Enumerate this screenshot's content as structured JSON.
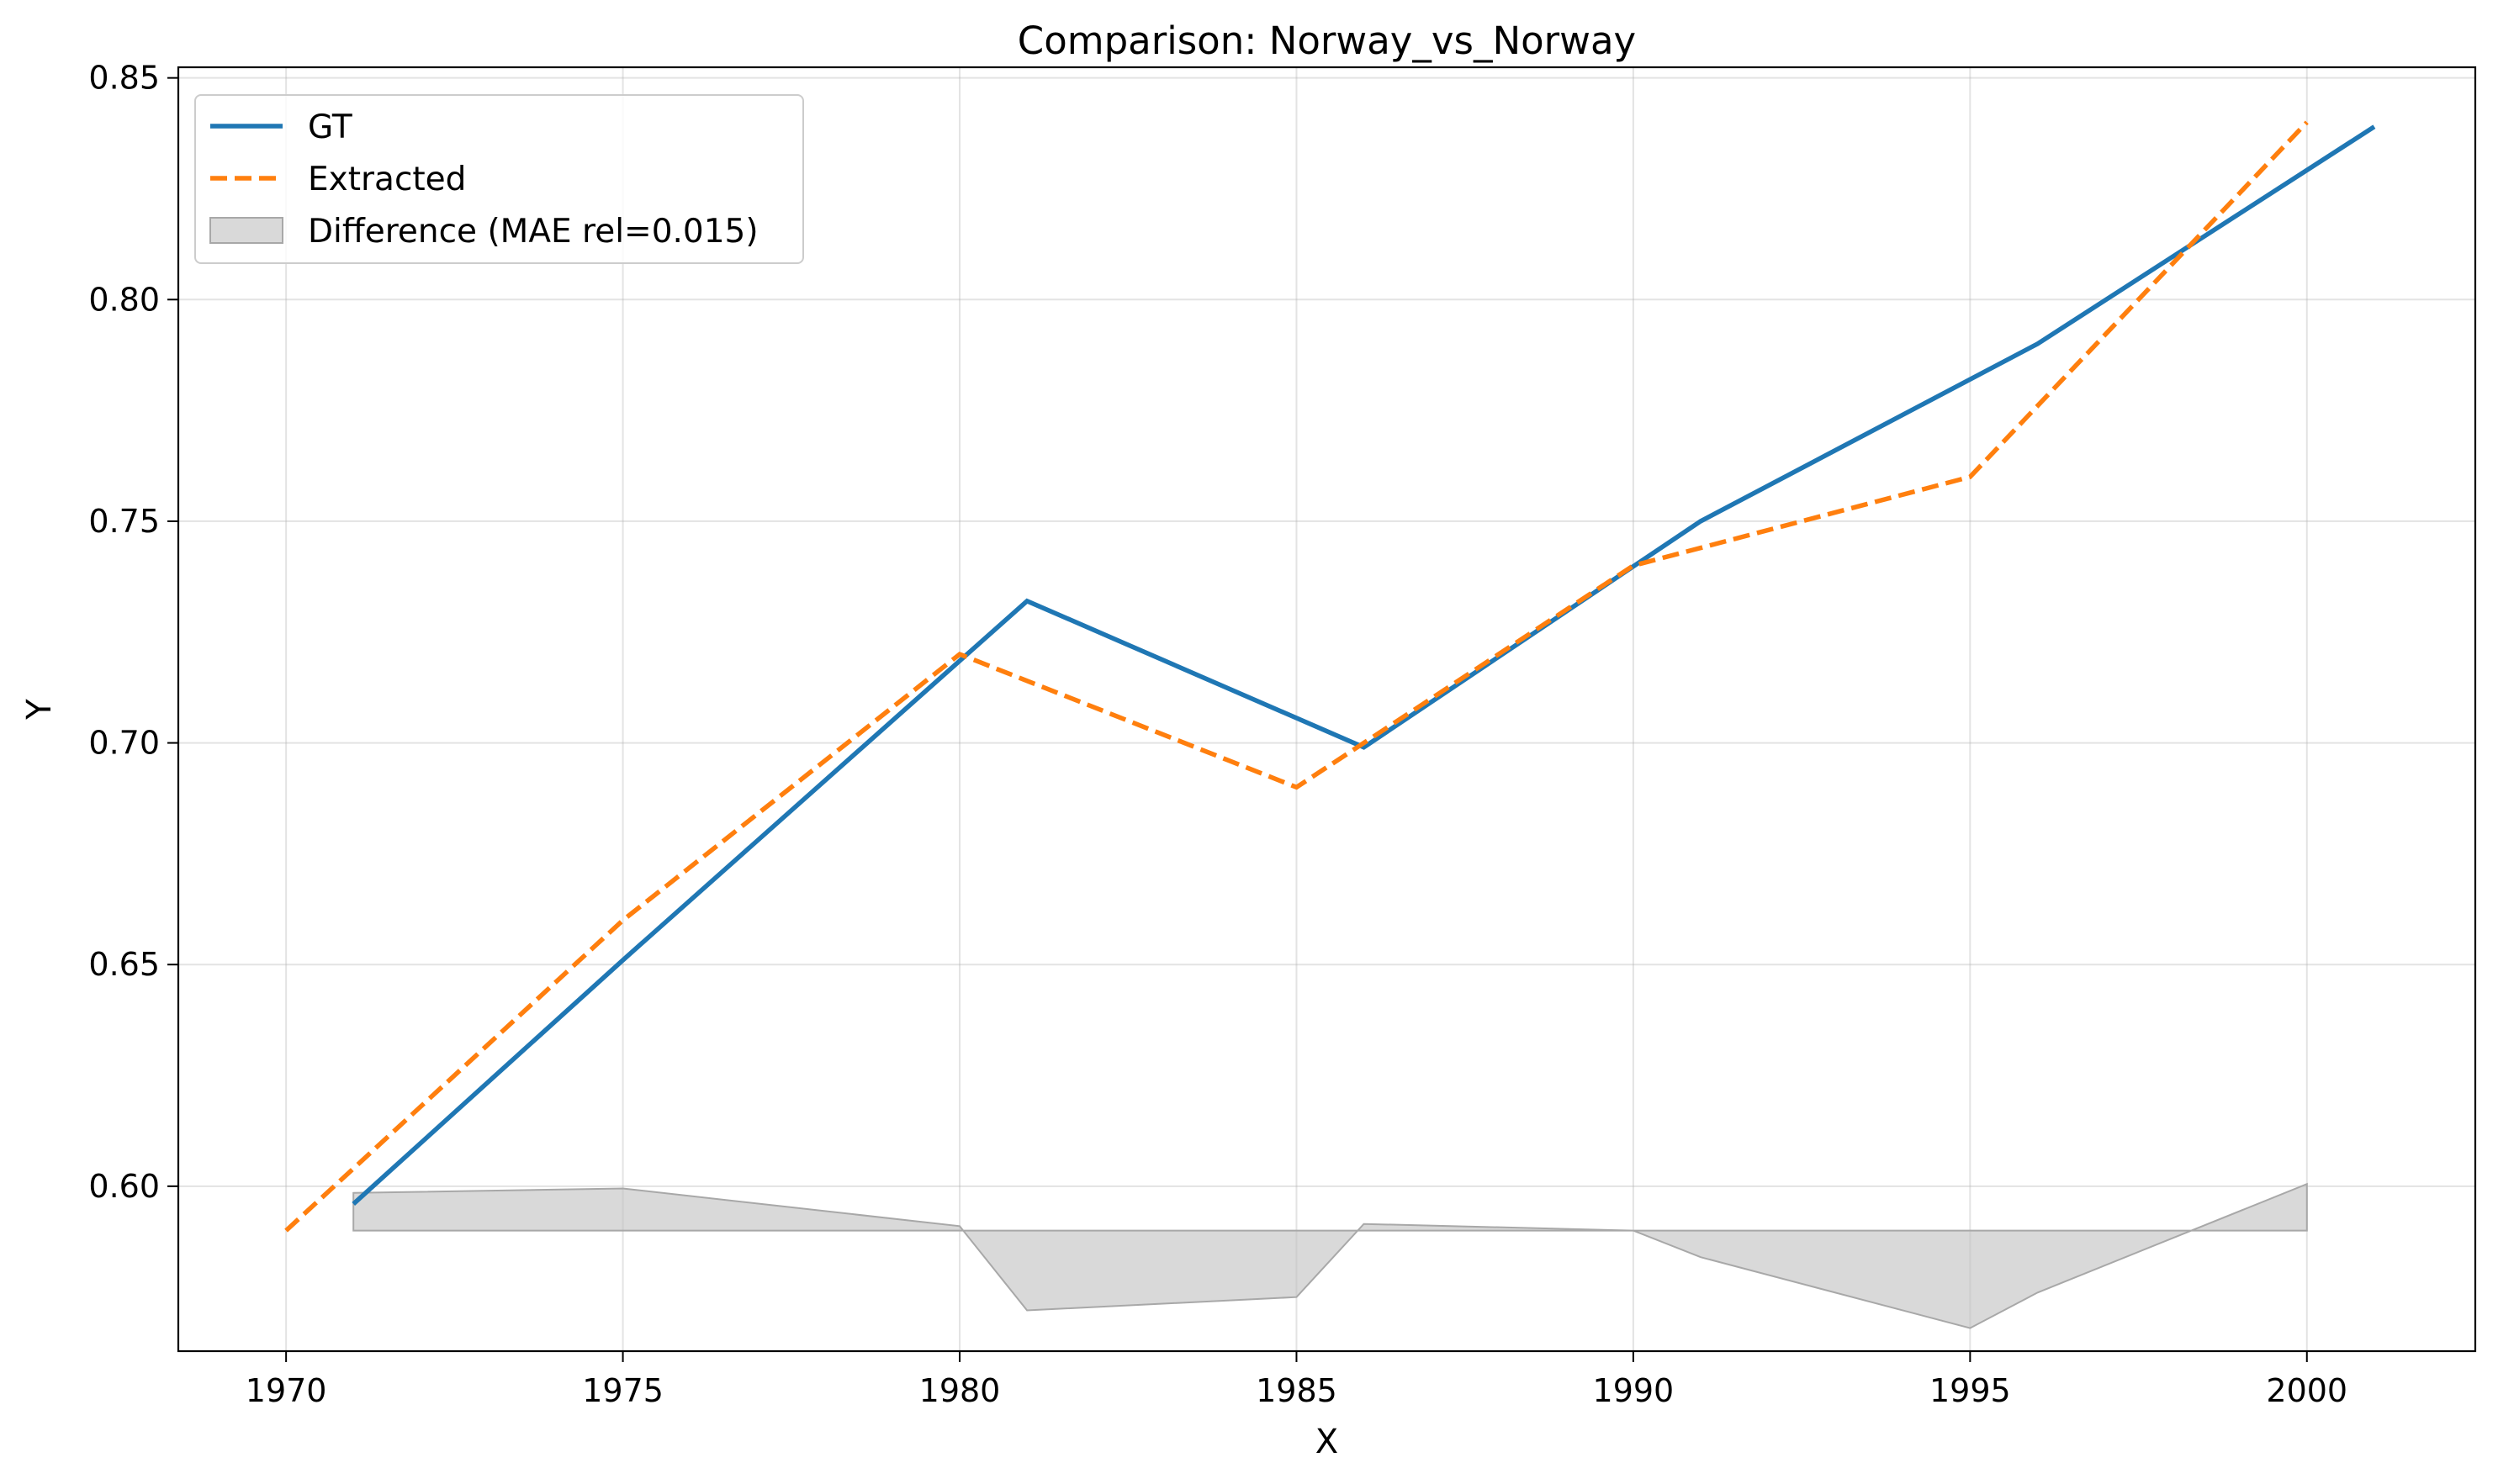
{
  "chart_data": {
    "type": "line",
    "title": "Comparison: Norway_vs_Norway",
    "xlabel": "X",
    "ylabel": "Y",
    "xlim": [
      1968.4,
      2002.5
    ],
    "ylim": [
      0.5628,
      0.8524
    ],
    "x_ticks": [
      1970,
      1975,
      1980,
      1985,
      1990,
      1995,
      2000
    ],
    "x_tick_labels": [
      "1970",
      "1975",
      "1980",
      "1985",
      "1990",
      "1995",
      "2000"
    ],
    "y_ticks": [
      0.6,
      0.65,
      0.7,
      0.75,
      0.8,
      0.85
    ],
    "y_tick_labels": [
      "0.60",
      "0.65",
      "0.70",
      "0.75",
      "0.80",
      "0.85"
    ],
    "grid": true,
    "legend_position": "top-left",
    "colors": {
      "gt": "#1f77b4",
      "extracted": "#ff7f0e",
      "difference": "#bfbfbf"
    },
    "series": [
      {
        "name": "GT",
        "style": "solid",
        "x": [
          1971,
          1975,
          1981,
          1986,
          1991,
          1996,
          2001
        ],
        "y": [
          0.596,
          0.651,
          0.732,
          0.699,
          0.75,
          0.79,
          0.839
        ]
      },
      {
        "name": "Extracted",
        "style": "dashed",
        "x": [
          1970,
          1975,
          1980,
          1985,
          1990,
          1995,
          2000
        ],
        "y": [
          0.59,
          0.66,
          0.72,
          0.69,
          0.74,
          0.76,
          0.84
        ]
      }
    ],
    "difference_band": {
      "name": "Difference (MAE rel=0.015)",
      "baseline": 0.59,
      "x": [
        1971,
        1975,
        1980,
        1981,
        1985,
        1986,
        1990,
        1991,
        1995,
        1996,
        2000
      ],
      "y": [
        0.5985,
        0.5995,
        0.591,
        0.572,
        0.575,
        0.5915,
        0.59,
        0.584,
        0.568,
        0.576,
        0.6005
      ]
    }
  }
}
